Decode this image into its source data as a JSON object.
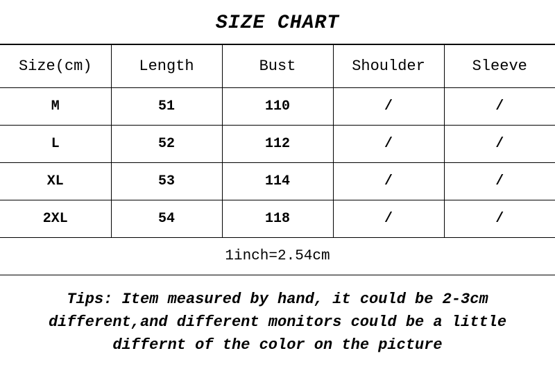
{
  "title": "SIZE CHART",
  "columns": [
    "Size(cm)",
    "Length",
    "Bust",
    "Shoulder",
    "Sleeve"
  ],
  "rows": [
    [
      "M",
      "51",
      "110",
      "/",
      "/"
    ],
    [
      "L",
      "52",
      "112",
      "/",
      "/"
    ],
    [
      "XL",
      "53",
      "114",
      "/",
      "/"
    ],
    [
      "2XL",
      "54",
      "118",
      "/",
      "/"
    ]
  ],
  "conversion": "1inch=2.54cm",
  "tips": "Tips: Item measured by hand, it could be 2-3cm different,and different monitors could be a little differnt of the color on the picture",
  "column_widths": [
    "20%",
    "20%",
    "20%",
    "20%",
    "20%"
  ],
  "colors": {
    "background": "#ffffff",
    "border": "#000000",
    "text": "#000000"
  },
  "fonts": {
    "family": "Courier New, Courier, monospace",
    "title_size": 28,
    "header_size": 22,
    "cell_size": 20,
    "conversion_size": 21,
    "tips_size": 22
  }
}
